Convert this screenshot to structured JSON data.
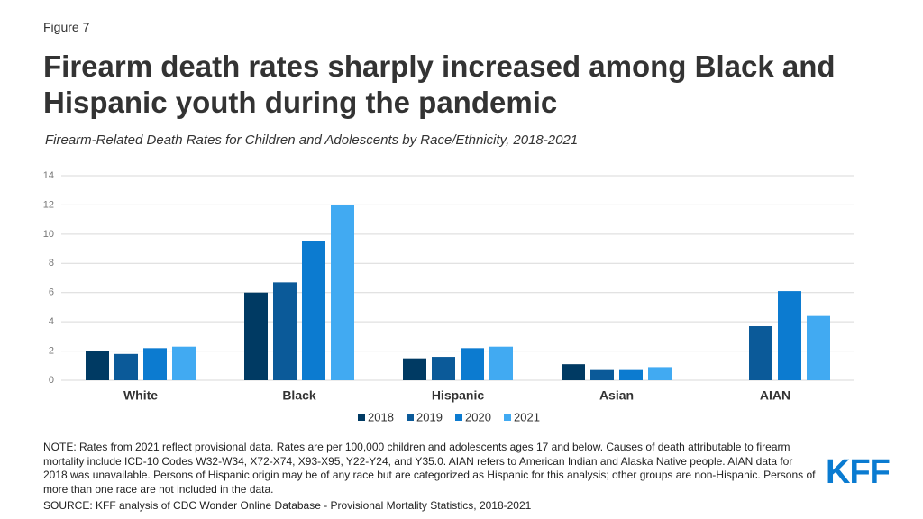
{
  "figure_label": "Figure 7",
  "chart_data": {
    "type": "bar",
    "title": "Firearm death rates sharply increased among Black and Hispanic youth during the pandemic",
    "subtitle": "Firearm-Related Death Rates for Children and Adolescents by Race/Ethnicity, 2018-2021",
    "categories": [
      "White",
      "Black",
      "Hispanic",
      "Asian",
      "AIAN"
    ],
    "series": [
      {
        "name": "2018",
        "color": "#003a63",
        "values": [
          2.0,
          6.0,
          1.5,
          1.1,
          null
        ]
      },
      {
        "name": "2019",
        "color": "#0b5a99",
        "values": [
          1.8,
          6.7,
          1.6,
          0.7,
          3.7
        ]
      },
      {
        "name": "2020",
        "color": "#0c7bd0",
        "values": [
          2.2,
          9.5,
          2.2,
          0.7,
          6.1
        ]
      },
      {
        "name": "2021",
        "color": "#41aaf2",
        "values": [
          2.3,
          12.0,
          2.3,
          0.9,
          4.4
        ]
      }
    ],
    "ylim": [
      0,
      14
    ],
    "yticks": [
      0,
      2,
      4,
      6,
      8,
      10,
      12,
      14
    ],
    "grid": true,
    "legend": "bottom"
  },
  "note": "NOTE: Rates from 2021 reflect provisional data. Rates are per 100,000 children and adolescents ages 17 and below. Causes of death attributable to firearm mortality include ICD-10 Codes W32-W34, X72-X74, X93-X95, Y22-Y24, and Y35.0. AIAN refers to American Indian and Alaska Native people. AIAN data for 2018 was unavailable. Persons of Hispanic origin may be of any race but are categorized as Hispanic for this analysis; other groups are non-Hispanic. Persons of more than one race are not included in the data.",
  "source": "SOURCE: KFF analysis of CDC Wonder Online Database - Provisional Mortality Statistics, 2018-2021",
  "logo": "KFF"
}
